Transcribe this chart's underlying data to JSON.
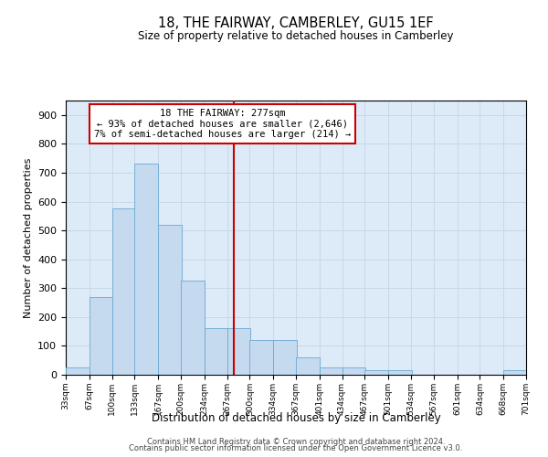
{
  "title": "18, THE FAIRWAY, CAMBERLEY, GU15 1EF",
  "subtitle": "Size of property relative to detached houses in Camberley",
  "xlabel": "Distribution of detached houses by size in Camberley",
  "ylabel": "Number of detached properties",
  "property_size": 277,
  "property_label": "18 THE FAIRWAY: 277sqm",
  "annotation_line1": "← 93% of detached houses are smaller (2,646)",
  "annotation_line2": "7% of semi-detached houses are larger (214) →",
  "footnote1": "Contains HM Land Registry data © Crown copyright and database right 2024.",
  "footnote2": "Contains public sector information licensed under the Open Government Licence v3.0.",
  "bin_edges": [
    33,
    67,
    100,
    133,
    167,
    200,
    234,
    267,
    300,
    334,
    367,
    401,
    434,
    467,
    501,
    534,
    567,
    601,
    634,
    668,
    701
  ],
  "bar_heights": [
    25,
    270,
    575,
    730,
    520,
    325,
    160,
    160,
    120,
    120,
    60,
    25,
    25,
    15,
    15,
    0,
    0,
    0,
    0,
    15
  ],
  "bar_color": "#c5d9ef",
  "bar_edge_color": "#6aaad4",
  "vline_color": "#cc0000",
  "annotation_box_color": "#cc0000",
  "grid_color": "#c8d8e8",
  "background_color": "#ddeaf7",
  "ylim": [
    0,
    950
  ],
  "yticks": [
    0,
    100,
    200,
    300,
    400,
    500,
    600,
    700,
    800,
    900
  ]
}
